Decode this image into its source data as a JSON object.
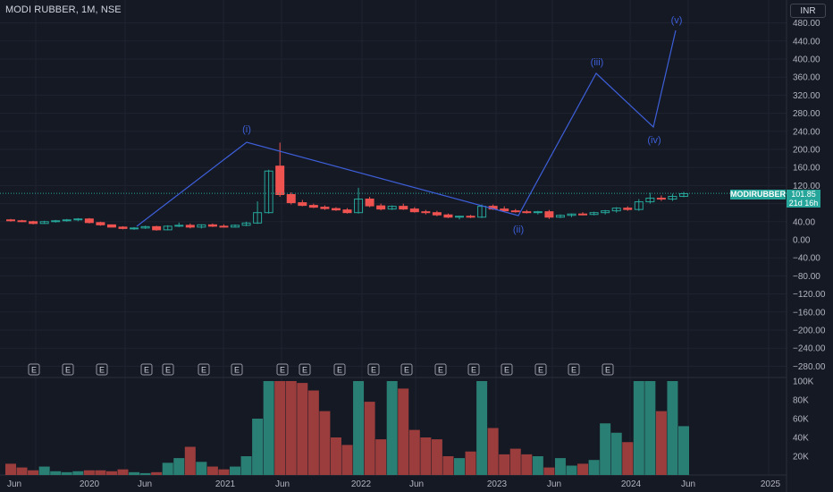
{
  "header": {
    "symbol_title": "MODI RUBBER, 1M, NSE",
    "currency": "INR"
  },
  "price_tag": {
    "label": "MODIRUBBER",
    "price": "101.85",
    "countdown": "21d 16h"
  },
  "colors": {
    "background": "#151924",
    "up": "#26a69a",
    "down": "#ef5350",
    "vol_up": "#2a7f75",
    "vol_down": "#9c3d3d",
    "wave": "#3d5fd9",
    "axis_text": "#b2b5be"
  },
  "chart_data": {
    "type": "candlestick",
    "title": "MODI RUBBER, 1M, NSE",
    "price_axis_ticks": [
      "480.00",
      "440.00",
      "400.00",
      "360.00",
      "320.00",
      "280.00",
      "240.00",
      "200.00",
      "160.00",
      "120.00",
      "80.00",
      "40.00",
      "0.00",
      "−40.00",
      "−80.00",
      "−120.00",
      "−160.00",
      "−200.00",
      "−240.00",
      "−280.00"
    ],
    "price_ylim": [
      -300,
      520
    ],
    "volume_axis_ticks": [
      "100K",
      "80K",
      "60K",
      "40K",
      "20K"
    ],
    "volume_ylim": [
      0,
      100000
    ],
    "time_axis_labels": [
      "Jun",
      "2020",
      "Jun",
      "2021",
      "Jun",
      "2022",
      "Jun",
      "2023",
      "Jun",
      "2024",
      "Jun",
      "2025"
    ],
    "last_price": 101.85,
    "candles": [
      {
        "o": 44,
        "h": 46,
        "l": 40,
        "c": 42,
        "v": 12000
      },
      {
        "o": 42,
        "h": 44,
        "l": 39,
        "c": 40,
        "v": 8000
      },
      {
        "o": 40,
        "h": 42,
        "l": 34,
        "c": 36,
        "v": 5000
      },
      {
        "o": 36,
        "h": 42,
        "l": 35,
        "c": 40,
        "v": 9000
      },
      {
        "o": 40,
        "h": 44,
        "l": 38,
        "c": 42,
        "v": 4000
      },
      {
        "o": 42,
        "h": 46,
        "l": 40,
        "c": 44,
        "v": 3000
      },
      {
        "o": 44,
        "h": 48,
        "l": 41,
        "c": 46,
        "v": 4000
      },
      {
        "o": 46,
        "h": 48,
        "l": 36,
        "c": 38,
        "v": 5000
      },
      {
        "o": 38,
        "h": 40,
        "l": 31,
        "c": 33,
        "v": 5000
      },
      {
        "o": 33,
        "h": 34,
        "l": 27,
        "c": 28,
        "v": 4000
      },
      {
        "o": 28,
        "h": 30,
        "l": 23,
        "c": 25,
        "v": 6000
      },
      {
        "o": 25,
        "h": 28,
        "l": 22,
        "c": 26,
        "v": 3000
      },
      {
        "o": 26,
        "h": 31,
        "l": 24,
        "c": 29,
        "v": 2000
      },
      {
        "o": 29,
        "h": 31,
        "l": 20,
        "c": 22,
        "v": 3000
      },
      {
        "o": 22,
        "h": 32,
        "l": 21,
        "c": 30,
        "v": 13000
      },
      {
        "o": 30,
        "h": 38,
        "l": 28,
        "c": 32,
        "v": 18000
      },
      {
        "o": 32,
        "h": 36,
        "l": 25,
        "c": 28,
        "v": 30000
      },
      {
        "o": 28,
        "h": 34,
        "l": 25,
        "c": 33,
        "v": 14000
      },
      {
        "o": 33,
        "h": 36,
        "l": 28,
        "c": 30,
        "v": 9000
      },
      {
        "o": 30,
        "h": 34,
        "l": 27,
        "c": 28,
        "v": 6000
      },
      {
        "o": 28,
        "h": 34,
        "l": 27,
        "c": 32,
        "v": 9000
      },
      {
        "o": 32,
        "h": 40,
        "l": 30,
        "c": 37,
        "v": 20000
      },
      {
        "o": 37,
        "h": 85,
        "l": 35,
        "c": 60,
        "v": 60000
      },
      {
        "o": 60,
        "h": 155,
        "l": 58,
        "c": 152,
        "v": 100000
      },
      {
        "o": 163,
        "h": 215,
        "l": 95,
        "c": 100,
        "v": 100000
      },
      {
        "o": 100,
        "h": 105,
        "l": 78,
        "c": 82,
        "v": 100000
      },
      {
        "o": 82,
        "h": 88,
        "l": 74,
        "c": 76,
        "v": 98000
      },
      {
        "o": 76,
        "h": 80,
        "l": 70,
        "c": 72,
        "v": 90000
      },
      {
        "o": 72,
        "h": 76,
        "l": 66,
        "c": 69,
        "v": 68000
      },
      {
        "o": 69,
        "h": 72,
        "l": 64,
        "c": 66,
        "v": 40000
      },
      {
        "o": 66,
        "h": 70,
        "l": 58,
        "c": 60,
        "v": 32000
      },
      {
        "o": 60,
        "h": 115,
        "l": 58,
        "c": 90,
        "v": 100000
      },
      {
        "o": 90,
        "h": 95,
        "l": 72,
        "c": 75,
        "v": 78000
      },
      {
        "o": 75,
        "h": 80,
        "l": 65,
        "c": 68,
        "v": 38000
      },
      {
        "o": 68,
        "h": 76,
        "l": 66,
        "c": 74,
        "v": 100000
      },
      {
        "o": 74,
        "h": 80,
        "l": 66,
        "c": 68,
        "v": 92000
      },
      {
        "o": 68,
        "h": 72,
        "l": 60,
        "c": 62,
        "v": 48000
      },
      {
        "o": 62,
        "h": 66,
        "l": 56,
        "c": 60,
        "v": 40000
      },
      {
        "o": 60,
        "h": 64,
        "l": 52,
        "c": 55,
        "v": 38000
      },
      {
        "o": 55,
        "h": 58,
        "l": 48,
        "c": 50,
        "v": 20000
      },
      {
        "o": 50,
        "h": 53,
        "l": 45,
        "c": 52,
        "v": 18000
      },
      {
        "o": 52,
        "h": 55,
        "l": 48,
        "c": 50,
        "v": 25000
      },
      {
        "o": 50,
        "h": 78,
        "l": 48,
        "c": 74,
        "v": 100000
      },
      {
        "o": 74,
        "h": 78,
        "l": 66,
        "c": 68,
        "v": 50000
      },
      {
        "o": 68,
        "h": 74,
        "l": 62,
        "c": 64,
        "v": 22000
      },
      {
        "o": 64,
        "h": 68,
        "l": 60,
        "c": 62,
        "v": 28000
      },
      {
        "o": 62,
        "h": 66,
        "l": 58,
        "c": 60,
        "v": 22000
      },
      {
        "o": 60,
        "h": 64,
        "l": 56,
        "c": 62,
        "v": 20000
      },
      {
        "o": 62,
        "h": 66,
        "l": 46,
        "c": 50,
        "v": 8000
      },
      {
        "o": 50,
        "h": 56,
        "l": 48,
        "c": 54,
        "v": 18000
      },
      {
        "o": 54,
        "h": 58,
        "l": 50,
        "c": 57,
        "v": 10000
      },
      {
        "o": 57,
        "h": 61,
        "l": 54,
        "c": 56,
        "v": 12000
      },
      {
        "o": 56,
        "h": 62,
        "l": 54,
        "c": 60,
        "v": 16000
      },
      {
        "o": 60,
        "h": 66,
        "l": 56,
        "c": 64,
        "v": 55000
      },
      {
        "o": 64,
        "h": 72,
        "l": 60,
        "c": 70,
        "v": 45000
      },
      {
        "o": 70,
        "h": 74,
        "l": 64,
        "c": 67,
        "v": 35000
      },
      {
        "o": 67,
        "h": 90,
        "l": 64,
        "c": 84,
        "v": 100000
      },
      {
        "o": 84,
        "h": 104,
        "l": 80,
        "c": 92,
        "v": 100000
      },
      {
        "o": 92,
        "h": 98,
        "l": 86,
        "c": 90,
        "v": 68000
      },
      {
        "o": 90,
        "h": 102,
        "l": 86,
        "c": 96,
        "v": 100000
      },
      {
        "o": 96,
        "h": 106,
        "l": 94,
        "c": 102,
        "v": 52000
      }
    ],
    "annotations": {
      "elliott_wave_labels": [
        "(i)",
        "(ii)",
        "(iii)",
        "(iv)",
        "(v)"
      ],
      "earnings_marker": "E"
    }
  }
}
